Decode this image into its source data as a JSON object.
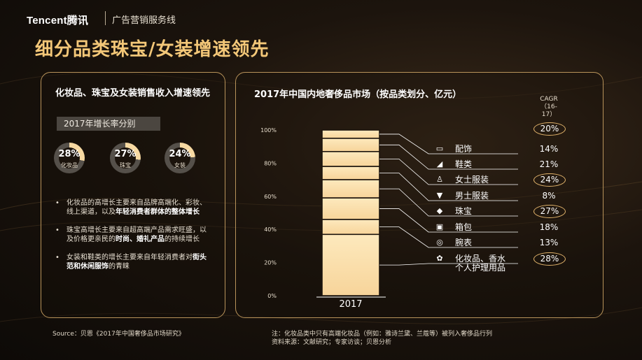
{
  "header": {
    "logo_brand": "Tencent",
    "logo_cn": "腾讯",
    "tagline": "广告营销服务线"
  },
  "page_title": "细分品类珠宝/女装增速领先",
  "left_panel": {
    "title": "化妆品、珠宝及女装销售收入增速领先",
    "growth_label": "2017年增长率分别",
    "rings": [
      {
        "pct": "28%",
        "label": "化妆品",
        "value": 0.28
      },
      {
        "pct": "27%",
        "label": "珠宝",
        "value": 0.27
      },
      {
        "pct": "24%",
        "label": "女装",
        "value": 0.24
      }
    ],
    "bullets": [
      {
        "text": "化妆品的高增长主要来自品牌高端化、彩妆、线上渠道，以及",
        "bold": "年轻消费者群体的整体增长"
      },
      {
        "text": "珠宝高增长主要来自超高端产品需求旺盛，以及价格更亲民的",
        "bold": "时尚、婚礼产品",
        "text2": "的持续增长"
      },
      {
        "text": "女装和鞋类的增长主要来自年轻消费者对",
        "bold": "街头范和休闲服饰",
        "text2": "的青睐"
      }
    ]
  },
  "right_panel": {
    "title": "2017年中国内地奢侈品市场（按品类划分、亿元）",
    "cagr_header": "CAGR",
    "cagr_sub": "（16-17）",
    "total_cagr": "20%",
    "categories": [
      {
        "icon": "belt-icon",
        "glyph": "▭",
        "label": "配饰",
        "cagr": "14%",
        "ringed": false
      },
      {
        "icon": "shoe-icon",
        "glyph": "◢",
        "label": "鞋类",
        "cagr": "21%",
        "ringed": false
      },
      {
        "icon": "dress-icon",
        "glyph": "♙",
        "label": "女士服装",
        "cagr": "24%",
        "ringed": true
      },
      {
        "icon": "shirt-icon",
        "glyph": "▼",
        "label": "男士服装",
        "cagr": "8%",
        "ringed": false
      },
      {
        "icon": "diamond-icon",
        "glyph": "◆",
        "label": "珠宝",
        "cagr": "27%",
        "ringed": true
      },
      {
        "icon": "bag-icon",
        "glyph": "▣",
        "label": "箱包",
        "cagr": "18%",
        "ringed": false
      },
      {
        "icon": "watch-icon",
        "glyph": "◎",
        "label": "腕表",
        "cagr": "13%",
        "ringed": false
      },
      {
        "icon": "cosmetics-icon",
        "glyph": "✿",
        "label": "化妆品、香水",
        "label2": "个人护理用品",
        "cagr": "28%",
        "ringed": true
      }
    ]
  },
  "chart_data": {
    "type": "bar",
    "stacked": true,
    "categories": [
      "2017"
    ],
    "ylim": [
      0,
      100
    ],
    "yticks": [
      "0%",
      "20%",
      "40%",
      "60%",
      "80%",
      "100%"
    ],
    "segments_top_to_bottom": [
      "配饰",
      "鞋类",
      "女士服装",
      "男士服装",
      "珠宝",
      "箱包",
      "腕表",
      "化妆品、香水、个人护理用品"
    ],
    "values_top_to_bottom": [
      5,
      8,
      9,
      8,
      11,
      13,
      9,
      37
    ]
  },
  "footer": {
    "source": "Source：贝恩《2017年中国奢侈品市场研究》",
    "note1": "注：化妆品类中只有高端化妆品（例如：雅诗兰黛、兰蔻等）被列入奢侈品行列",
    "note2": "资料来源：文献研究；专家访谈；贝恩分析"
  },
  "colors": {
    "gold": "#f3c778",
    "ring_fill": "#f7d9a2",
    "ring_track": "#55504a",
    "bar_top": "#fde9bd",
    "bar_bottom": "#f7d49a"
  }
}
